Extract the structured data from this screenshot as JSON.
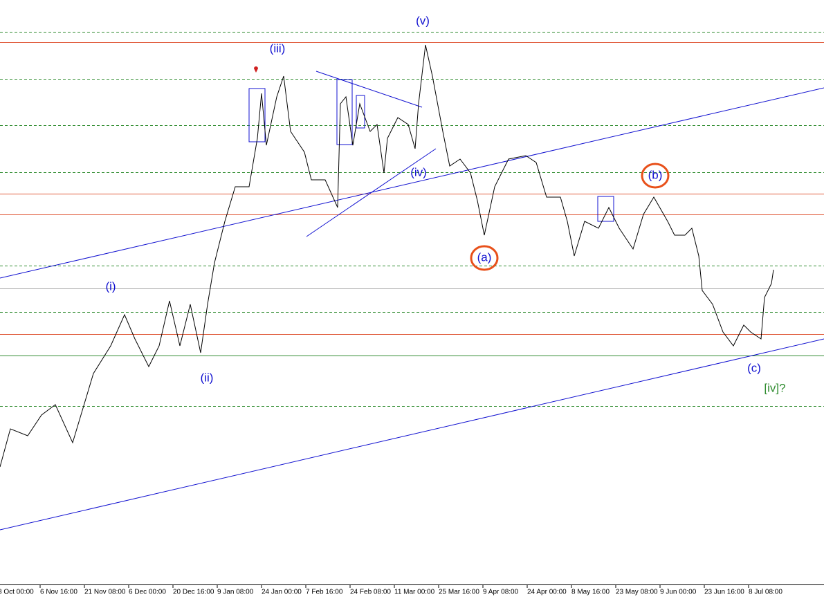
{
  "wave_labels": [
    "(i)",
    "(ii)",
    "(iii)",
    "(iv)",
    "(v)",
    "(a)",
    "(b)",
    "(c)",
    "[iv]?"
  ],
  "time_axis": {
    "labels": [
      "8 Oct 00:00",
      "6 Nov 16:00",
      "21 Nov 08:00",
      "6 Dec 00:00",
      "20 Dec 16:00",
      "9 Jan 08:00",
      "24 Jan 00:00",
      "7 Feb 16:00",
      "24 Feb 08:00",
      "11 Mar 00:00",
      "25 Mar 16:00",
      "9 Apr 08:00",
      "24 Apr 00:00",
      "8 May 16:00",
      "23 May 08:00",
      "9 Jun 00:00",
      "23 Jun 16:00",
      "8 Jul 08:00"
    ]
  }
}
